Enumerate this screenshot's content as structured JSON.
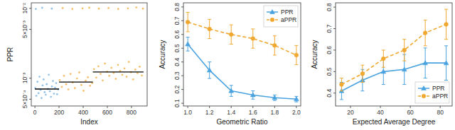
{
  "chart_data": [
    {
      "type": "scatter",
      "x_label": "Index",
      "y_label": "PPR",
      "log": "y",
      "xlim": [
        -30,
        930
      ],
      "ylim": [
        0.0004,
        0.012
      ],
      "xticks": [
        0,
        200,
        400,
        600,
        800
      ],
      "yticks": [
        {
          "value": 0.01,
          "label": "10⁻²"
        },
        {
          "value": 0.005,
          "label": "5×10⁻³"
        },
        {
          "value": 0.001,
          "label": "10⁻³"
        },
        {
          "value": 0.0005,
          "label": "5×10⁻⁴"
        }
      ],
      "series": [
        {
          "color": "#7db4e0",
          "marker": "circle",
          "x": [
            3,
            12,
            21,
            30,
            38,
            47,
            55,
            64,
            72,
            81,
            90,
            98,
            107,
            115,
            124,
            133,
            141,
            150,
            158,
            167,
            176,
            184,
            193,
            8,
            60,
            140
          ],
          "values": [
            0.00072,
            0.00056,
            0.00089,
            0.00061,
            0.00105,
            0.00068,
            0.00052,
            0.00079,
            0.00096,
            0.00063,
            0.00058,
            0.00082,
            0.0007,
            0.00112,
            0.00065,
            0.00054,
            0.00076,
            0.00091,
            0.0006,
            0.00073,
            0.00085,
            0.00059,
            0.00069,
            0.0098,
            0.0102,
            0.0099
          ]
        },
        {
          "color": "#f3b04a",
          "marker": "circle",
          "x": [
            205,
            223,
            241,
            259,
            277,
            295,
            313,
            331,
            349,
            367,
            385,
            403,
            421,
            439,
            457,
            475,
            490,
            508,
            526,
            544,
            562,
            580,
            598,
            616,
            634,
            652,
            670,
            688,
            706,
            724,
            742,
            760,
            778,
            796,
            814,
            832,
            850,
            868,
            886,
            230,
            310,
            395,
            450,
            530,
            610,
            690,
            770,
            840,
            895
          ],
          "values": [
            0.00094,
            0.00075,
            0.00108,
            0.00082,
            0.00069,
            0.00115,
            0.00087,
            0.00072,
            0.00099,
            0.00121,
            0.0008,
            0.00066,
            0.00092,
            0.00103,
            0.00078,
            0.00085,
            0.00135,
            0.00102,
            0.00148,
            0.00115,
            0.00093,
            0.00162,
            0.00124,
            0.00108,
            0.00141,
            0.00119,
            0.00098,
            0.00155,
            0.00127,
            0.00112,
            0.00138,
            0.00105,
            0.00171,
            0.00122,
            0.00096,
            0.00133,
            0.00118,
            0.00146,
            0.00109,
            0.0101,
            0.0098,
            0.01,
            0.0102,
            0.0099,
            0.0101,
            0.0098,
            0.01,
            0.0103,
            0.0099
          ]
        }
      ],
      "mean_lines": [
        {
          "color": "#000000",
          "x": [
            0,
            200
          ],
          "value": 0.0007
        },
        {
          "color": "#000000",
          "x": [
            200,
            480
          ],
          "value": 0.00088
        },
        {
          "color": "#000000",
          "x": [
            480,
            900
          ],
          "value": 0.00123
        }
      ]
    },
    {
      "type": "line",
      "x_label": "Geometric Ratio",
      "y_label": "Accuracy",
      "legend": "top-right",
      "xlim": [
        0.96,
        2.04
      ],
      "ylim": [
        0.08,
        0.83
      ],
      "xticks": [
        {
          "value": 1,
          "label": "1.0"
        },
        1.2,
        1.4,
        1.6,
        1.8,
        {
          "value": 2,
          "label": "2.0"
        }
      ],
      "yticks": [
        0.1,
        0.2,
        0.3,
        0.4,
        0.5,
        0.6,
        0.7,
        0.8
      ],
      "x": [
        1,
        1.2,
        1.4,
        1.6,
        1.8,
        2
      ],
      "series": [
        {
          "name": "PPR",
          "color": "#4aa3df",
          "marker": "triangle",
          "line_style": "solid",
          "values": [
            0.53,
            0.34,
            0.19,
            0.16,
            0.14,
            0.13
          ],
          "errors": [
            0.05,
            0.06,
            0.04,
            0.03,
            0.02,
            0.02
          ]
        },
        {
          "name": "aPPR",
          "color": "#f0a830",
          "marker": "circle",
          "line_style": "dashed",
          "values": [
            0.69,
            0.64,
            0.6,
            0.57,
            0.52,
            0.45
          ],
          "errors": [
            0.07,
            0.07,
            0.07,
            0.07,
            0.07,
            0.07
          ]
        }
      ]
    },
    {
      "type": "line",
      "x_label": "Expected Average Degree",
      "y_label": "Accuracy",
      "legend": "bottom-right",
      "xlim": [
        10,
        88
      ],
      "ylim": [
        0.34,
        0.82
      ],
      "xticks": [
        20,
        40,
        60,
        80
      ],
      "yticks": [
        0.4,
        0.5,
        0.6,
        0.7,
        0.8
      ],
      "x": [
        14,
        28,
        42,
        56,
        70,
        84
      ],
      "series": [
        {
          "name": "PPR",
          "color": "#4aa3df",
          "marker": "triangle",
          "line_style": "solid",
          "values": [
            0.41,
            0.46,
            0.5,
            0.51,
            0.54,
            0.54
          ],
          "errors": [
            0.04,
            0.05,
            0.06,
            0.07,
            0.07,
            0.08
          ]
        },
        {
          "name": "aPPR",
          "color": "#f0a830",
          "marker": "circle",
          "line_style": "dashed",
          "values": [
            0.44,
            0.49,
            0.56,
            0.6,
            0.68,
            0.72
          ],
          "errors": [
            0.03,
            0.04,
            0.04,
            0.05,
            0.06,
            0.07
          ]
        }
      ]
    }
  ]
}
